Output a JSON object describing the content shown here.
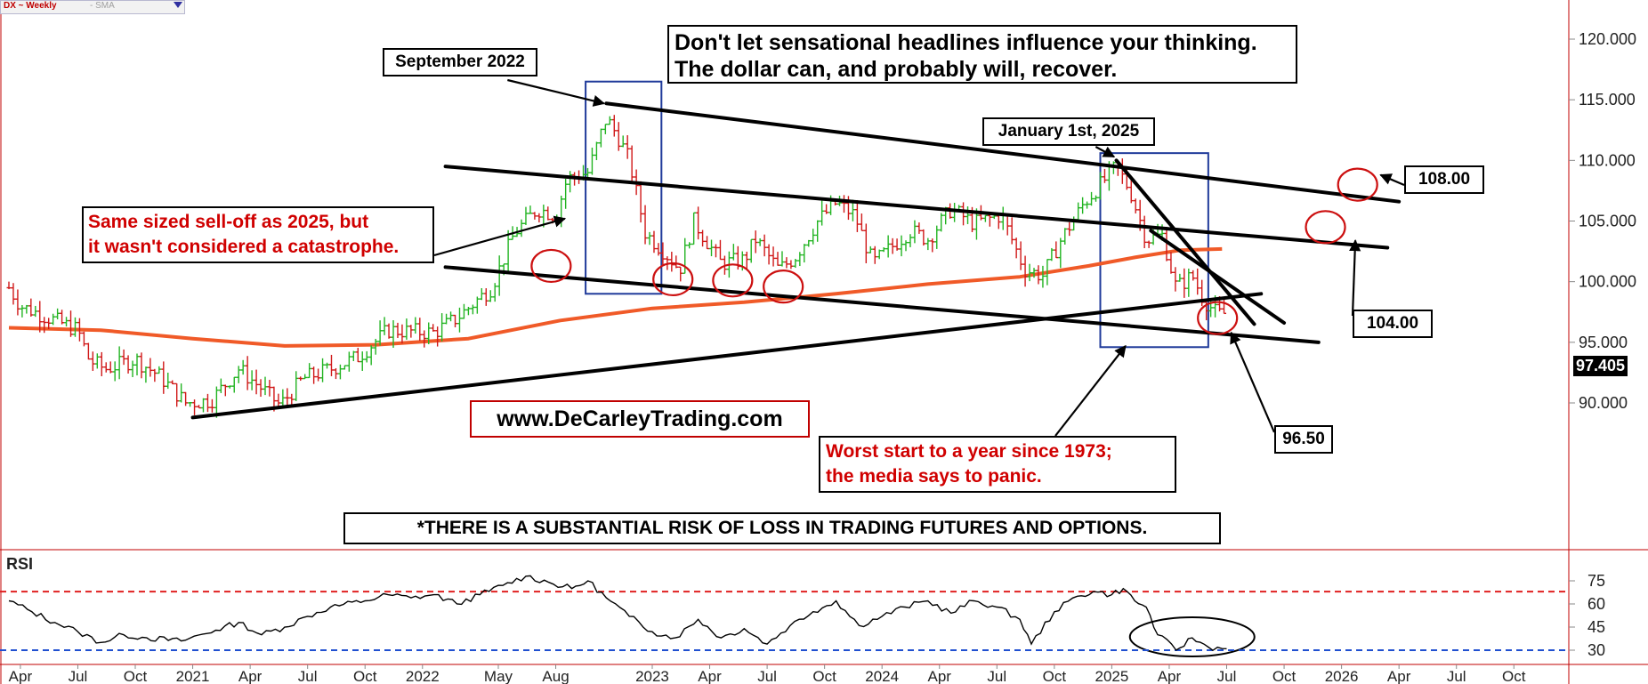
{
  "header": {
    "symbol_label": "DX ~ Weekly",
    "indicator_label": "- SMA"
  },
  "annotations": {
    "headline": "Don't let sensational headlines influence your thinking. The dollar can, and probably will, recover.",
    "sep2022": "September 2022",
    "jan2025": "January 1st, 2025",
    "selloff_line1": "Same sized sell-off as 2025, but",
    "selloff_line2": "it wasn't considered a catastrophe.",
    "website": "www.DeCarleyTrading.com",
    "worst_line1": "Worst start to a year since 1973;",
    "worst_line2": "the media says to panic.",
    "disclaimer": "*THERE IS A SUBSTANTIAL RISK OF LOSS IN TRADING FUTURES AND OPTIONS.",
    "level_108": "108.00",
    "level_104": "104.00",
    "level_9650": "96.50",
    "last_price": "97.405",
    "rsi_label": "RSI"
  },
  "colors": {
    "up_bar": "#22b422",
    "down_bar": "#d01818",
    "sma": "#f05a28",
    "trendline": "#000000",
    "highlight_box": "#1f3a9a",
    "circle": "#cc1010",
    "rsi_upper": "#e02020",
    "rsi_lower": "#2050d0"
  },
  "chart_data": [
    {
      "type": "ohlc",
      "series_name": "DX ~ Weekly",
      "y_ticks": [
        "120.000",
        "115.000",
        "110.000",
        "105.000",
        "100.000",
        "95.000",
        "90.000"
      ],
      "x_ticks": [
        "Apr",
        "Jul",
        "Oct",
        "2021",
        "Apr",
        "Jul",
        "Oct",
        "2022",
        "May",
        "Aug",
        "2023",
        "Apr",
        "Jul",
        "Oct",
        "2024",
        "Apr",
        "Jul",
        "Oct",
        "2025",
        "Apr",
        "Jul",
        "Oct",
        "2026",
        "Apr",
        "Jul",
        "Oct"
      ],
      "ylim": [
        86,
        123
      ],
      "anchors": [
        [
          2020.2,
          99.5
        ],
        [
          2020.25,
          98.0
        ],
        [
          2020.35,
          97.2
        ],
        [
          2020.5,
          96.0
        ],
        [
          2020.55,
          93.5
        ],
        [
          2020.62,
          92.8
        ],
        [
          2020.75,
          93.6
        ],
        [
          2020.85,
          92.3
        ],
        [
          2020.97,
          90.0
        ],
        [
          2021.08,
          90.2
        ],
        [
          2021.2,
          92.8
        ],
        [
          2021.3,
          91.2
        ],
        [
          2021.38,
          89.8
        ],
        [
          2021.48,
          92.0
        ],
        [
          2021.6,
          92.8
        ],
        [
          2021.72,
          93.8
        ],
        [
          2021.85,
          96.0
        ],
        [
          2021.95,
          95.9
        ],
        [
          2022.05,
          95.8
        ],
        [
          2022.15,
          97.0
        ],
        [
          2022.3,
          99.5
        ],
        [
          2022.4,
          104.0
        ],
        [
          2022.5,
          106.0
        ],
        [
          2022.58,
          105.5
        ],
        [
          2022.63,
          108.5
        ],
        [
          2022.72,
          109.0
        ],
        [
          2022.8,
          113.5
        ],
        [
          2022.85,
          112.0
        ],
        [
          2022.9,
          110.0
        ],
        [
          2022.97,
          104.0
        ],
        [
          2023.05,
          102.5
        ],
        [
          2023.12,
          101.0
        ],
        [
          2023.18,
          105.0
        ],
        [
          2023.3,
          101.5
        ],
        [
          2023.4,
          101.8
        ],
        [
          2023.45,
          103.5
        ],
        [
          2023.55,
          101.0
        ],
        [
          2023.62,
          102.0
        ],
        [
          2023.72,
          105.0
        ],
        [
          2023.8,
          106.5
        ],
        [
          2023.88,
          105.5
        ],
        [
          2023.96,
          101.5
        ],
        [
          2024.05,
          103.0
        ],
        [
          2024.12,
          104.2
        ],
        [
          2024.2,
          103.5
        ],
        [
          2024.3,
          106.0
        ],
        [
          2024.4,
          104.8
        ],
        [
          2024.52,
          105.5
        ],
        [
          2024.62,
          101.0
        ],
        [
          2024.7,
          100.5
        ],
        [
          2024.78,
          103.5
        ],
        [
          2024.88,
          106.5
        ],
        [
          2024.95,
          108.0
        ],
        [
          2025.02,
          109.5
        ],
        [
          2025.08,
          107.5
        ],
        [
          2025.15,
          103.5
        ],
        [
          2025.22,
          103.8
        ],
        [
          2025.28,
          99.5
        ],
        [
          2025.35,
          100.5
        ],
        [
          2025.4,
          98.5
        ],
        [
          2025.46,
          97.3
        ],
        [
          2025.5,
          97.4
        ]
      ],
      "sma_200": {
        "x": [
          2020.2,
          2020.6,
          2021.0,
          2021.4,
          2021.8,
          2022.2,
          2022.6,
          2023.0,
          2023.4,
          2023.8,
          2024.2,
          2024.6,
          2024.9,
          2025.1,
          2025.3,
          2025.48
        ],
        "y": [
          96.2,
          96.0,
          95.3,
          94.7,
          94.8,
          95.3,
          96.8,
          97.8,
          98.3,
          99.0,
          99.8,
          100.4,
          101.3,
          102.0,
          102.6,
          102.7
        ]
      },
      "trendlines": [
        {
          "x": [
            2022.8,
            2026.25
          ],
          "y": [
            114.7,
            106.6
          ]
        },
        {
          "x": [
            2022.1,
            2026.2
          ],
          "y": [
            109.5,
            102.8
          ]
        },
        {
          "x": [
            2022.1,
            2025.9
          ],
          "y": [
            101.2,
            95.0
          ]
        },
        {
          "x": [
            2021.0,
            2025.65
          ],
          "y": [
            88.8,
            99.0
          ]
        },
        {
          "x": [
            2025.02,
            2025.62
          ],
          "y": [
            110.0,
            96.5
          ]
        },
        {
          "x": [
            2025.17,
            2025.75
          ],
          "y": [
            104.2,
            96.6
          ]
        }
      ],
      "level_markers": [
        108.0,
        104.0,
        96.5
      ],
      "last_price": 97.405
    },
    {
      "type": "line",
      "series_name": "RSI",
      "y_ticks": [
        "75",
        "60",
        "45",
        "30"
      ],
      "ylim": [
        24,
        84
      ],
      "reference_lines": [
        68,
        30
      ],
      "x": [
        2020.2,
        2020.3,
        2020.4,
        2020.5,
        2020.6,
        2020.7,
        2020.8,
        2020.95,
        2021.1,
        2021.2,
        2021.3,
        2021.4,
        2021.5,
        2021.6,
        2021.75,
        2021.85,
        2021.95,
        2022.05,
        2022.15,
        2022.25,
        2022.35,
        2022.45,
        2022.55,
        2022.65,
        2022.72,
        2022.8,
        2022.9,
        2023.0,
        2023.1,
        2023.2,
        2023.3,
        2023.4,
        2023.5,
        2023.6,
        2023.7,
        2023.8,
        2023.9,
        2024.0,
        2024.1,
        2024.2,
        2024.3,
        2024.4,
        2024.5,
        2024.6,
        2024.65,
        2024.75,
        2024.85,
        2024.92,
        2025.0,
        2025.05,
        2025.1,
        2025.15,
        2025.2,
        2025.28,
        2025.35,
        2025.42,
        2025.5
      ],
      "y": [
        62,
        55,
        48,
        42,
        35,
        40,
        38,
        36,
        43,
        48,
        40,
        45,
        52,
        58,
        62,
        66,
        64,
        66,
        60,
        66,
        72,
        78,
        74,
        70,
        75,
        64,
        52,
        42,
        38,
        50,
        38,
        44,
        34,
        46,
        55,
        62,
        46,
        52,
        58,
        62,
        54,
        62,
        58,
        50,
        34,
        55,
        65,
        68,
        66,
        70,
        62,
        58,
        40,
        30,
        38,
        32,
        31
      ]
    }
  ]
}
